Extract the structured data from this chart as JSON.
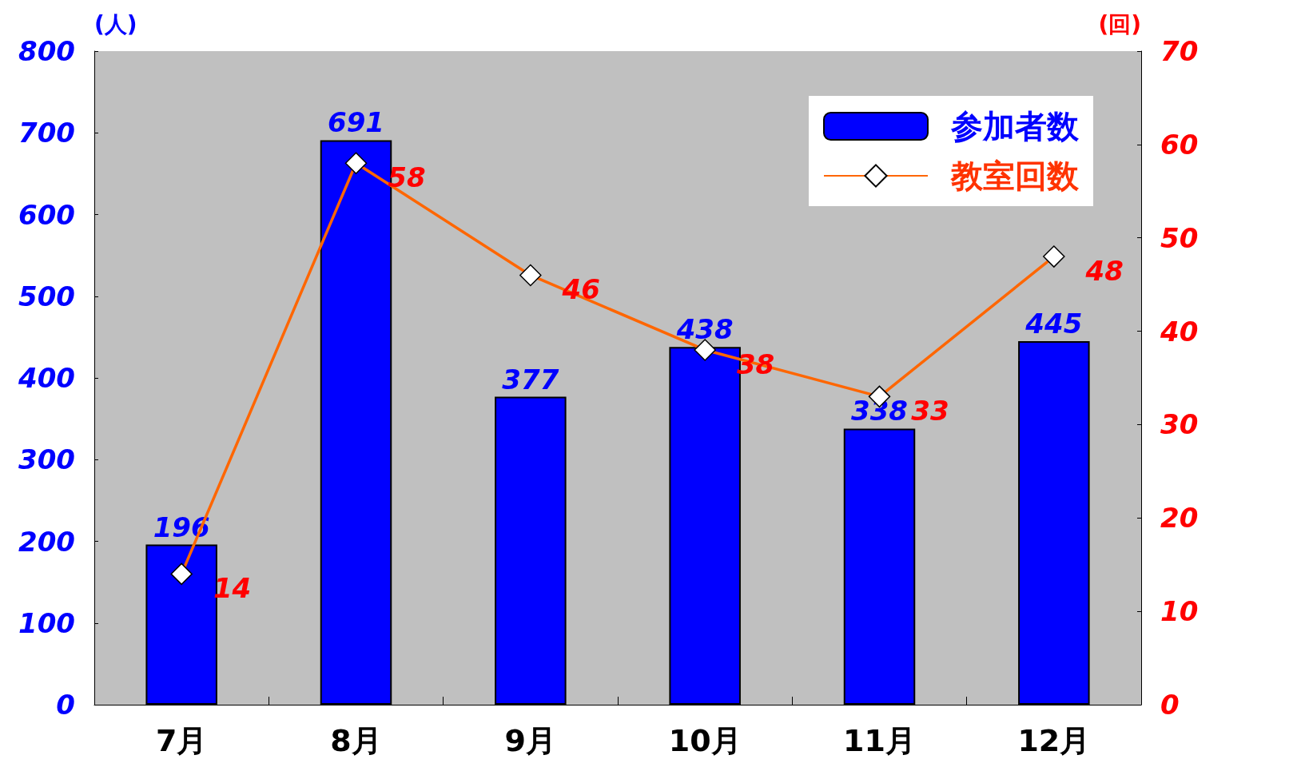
{
  "chart_data": {
    "type": "bar",
    "categories": [
      "7月",
      "8月",
      "9月",
      "10月",
      "11月",
      "12月"
    ],
    "ylabel": "(人)",
    "y2label": "(回)",
    "ylim": [
      0,
      800
    ],
    "yticks": [
      0,
      100,
      200,
      300,
      400,
      500,
      600,
      700,
      800
    ],
    "y2lim": [
      0,
      70
    ],
    "y2ticks": [
      0,
      10,
      20,
      30,
      40,
      50,
      60,
      70
    ],
    "series": [
      {
        "name": "参加者数",
        "color": "#0000ff",
        "values": [
          196,
          691,
          377,
          438,
          338,
          445
        ]
      },
      {
        "name": "教室回数",
        "type": "line",
        "axis": "y2",
        "color": "#ff6600",
        "marker": "diamond",
        "values": [
          14,
          58,
          46,
          38,
          33,
          48
        ]
      }
    ],
    "data_labels": true,
    "legend": "top right"
  }
}
